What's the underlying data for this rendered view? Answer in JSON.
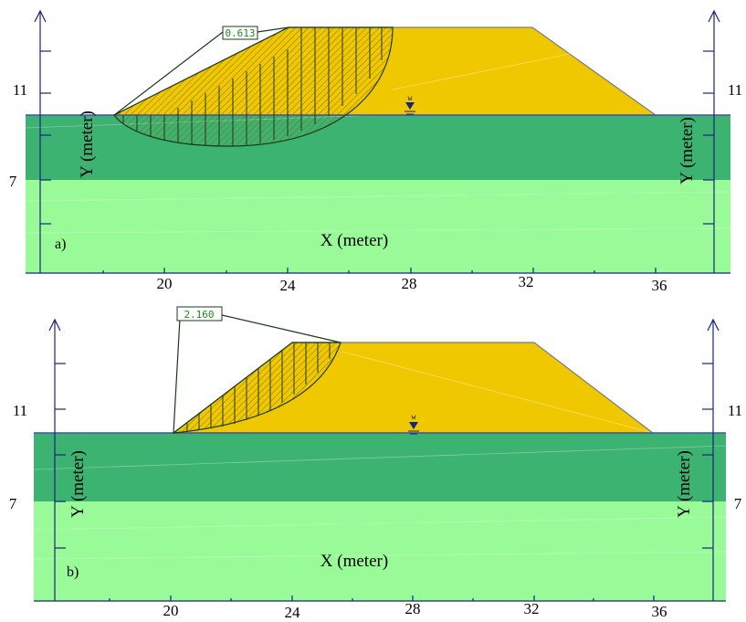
{
  "panels": [
    {
      "id": "a",
      "panel_label": "a)",
      "fos_value": "0.613",
      "x_axis_label": "X (meter)",
      "y_axis_label_left": "Y (meter)",
      "y_axis_label_right": "Y (meter)",
      "x_ticks": [
        "20",
        "24",
        "28",
        "32",
        "36"
      ],
      "y_ticks_left": [
        "11",
        "7"
      ],
      "y_ticks_right": [
        "11",
        "7"
      ],
      "water_marker": "w"
    },
    {
      "id": "b",
      "panel_label": "b)",
      "fos_value": "2.160",
      "x_axis_label": "X (meter)",
      "y_axis_label_left": "Y (meter)",
      "y_axis_label_right": "Y (meter)",
      "x_ticks": [
        "20",
        "24",
        "28",
        "32",
        "36"
      ],
      "y_ticks_left": [
        "11",
        "7"
      ],
      "y_ticks_right": [
        "11",
        "7"
      ],
      "water_marker": "w"
    }
  ],
  "colors": {
    "embankment": "#f0c800",
    "upper_layer": "#3cb371",
    "lower_layer": "#98fb98",
    "axis": "#1a237e",
    "water_line": "#3f51b5",
    "slip_lines": "#1b3a1b",
    "fos_text": "#1a8a1a"
  }
}
